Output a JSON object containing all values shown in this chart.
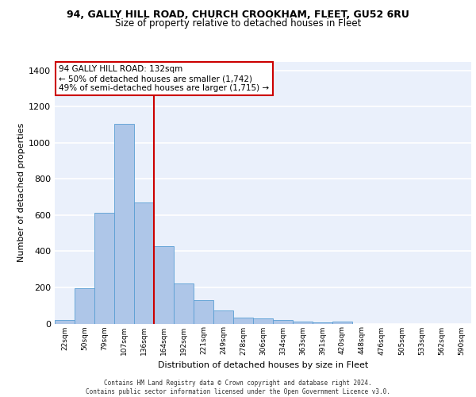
{
  "title1": "94, GALLY HILL ROAD, CHURCH CROOKHAM, FLEET, GU52 6RU",
  "title2": "Size of property relative to detached houses in Fleet",
  "xlabel": "Distribution of detached houses by size in Fleet",
  "ylabel": "Number of detached properties",
  "bar_color": "#aec6e8",
  "bar_edge_color": "#5a9fd4",
  "background_color": "#eaf0fb",
  "grid_color": "#ffffff",
  "categories": [
    "22sqm",
    "50sqm",
    "79sqm",
    "107sqm",
    "136sqm",
    "164sqm",
    "192sqm",
    "221sqm",
    "249sqm",
    "278sqm",
    "306sqm",
    "334sqm",
    "363sqm",
    "391sqm",
    "420sqm",
    "448sqm",
    "476sqm",
    "505sqm",
    "533sqm",
    "562sqm",
    "590sqm"
  ],
  "values": [
    18,
    195,
    615,
    1105,
    670,
    430,
    220,
    130,
    72,
    33,
    30,
    20,
    13,
    8,
    13,
    0,
    0,
    0,
    0,
    0,
    0
  ],
  "ylim": [
    0,
    1450
  ],
  "yticks": [
    0,
    200,
    400,
    600,
    800,
    1000,
    1200,
    1400
  ],
  "property_line_index": 4,
  "property_line_label1": "94 GALLY HILL ROAD: 132sqm",
  "property_line_label2": "← 50% of detached houses are smaller (1,742)",
  "property_line_label3": "49% of semi-detached houses are larger (1,715) →",
  "annotation_box_color": "#ffffff",
  "annotation_box_edge_color": "#cc0000",
  "line_color": "#cc0000",
  "footer1": "Contains HM Land Registry data © Crown copyright and database right 2024.",
  "footer2": "Contains public sector information licensed under the Open Government Licence v3.0."
}
